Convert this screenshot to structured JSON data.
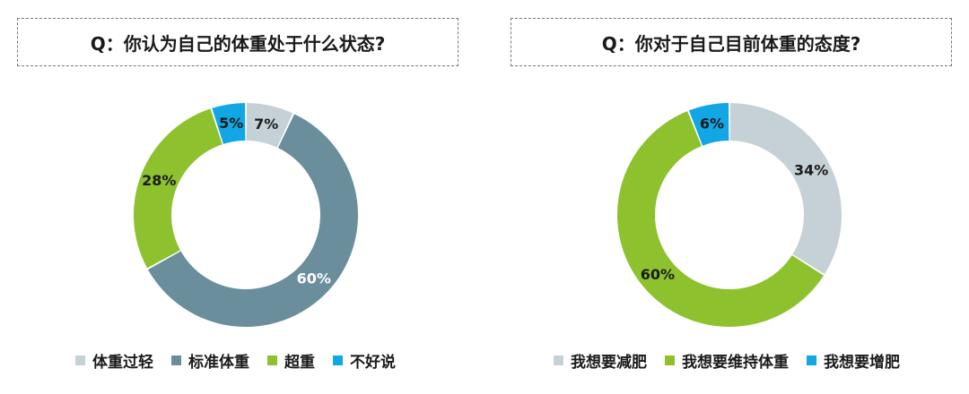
{
  "chart_data": [
    {
      "type": "pie",
      "variant": "donut",
      "title": "Q：你认为自己的体重处于什么状态?",
      "categories": [
        "体重过轻",
        "标准体重",
        "超重",
        "不好说"
      ],
      "values": [
        7,
        60,
        28,
        5
      ],
      "value_labels": [
        "7%",
        "60%",
        "28%",
        "5%"
      ],
      "colors": [
        "#c5d1d7",
        "#6a8e9c",
        "#8ec12e",
        "#12a7e4"
      ],
      "label_colors": [
        "#1a1a1a",
        "#ffffff",
        "#1a1a1a",
        "#1a1a1a"
      ],
      "legend_placement": "bottom"
    },
    {
      "type": "pie",
      "variant": "donut",
      "title": "Q：你对于自己目前体重的态度?",
      "categories": [
        "我想要减肥",
        "我想要维持体重",
        "我想要增肥"
      ],
      "values": [
        34,
        60,
        6
      ],
      "value_labels": [
        "34%",
        "60%",
        "6%"
      ],
      "colors": [
        "#c5d1d7",
        "#8ec12e",
        "#12a7e4"
      ],
      "label_colors": [
        "#1a1a1a",
        "#1a1a1a",
        "#1a1a1a"
      ],
      "legend_placement": "bottom"
    }
  ]
}
